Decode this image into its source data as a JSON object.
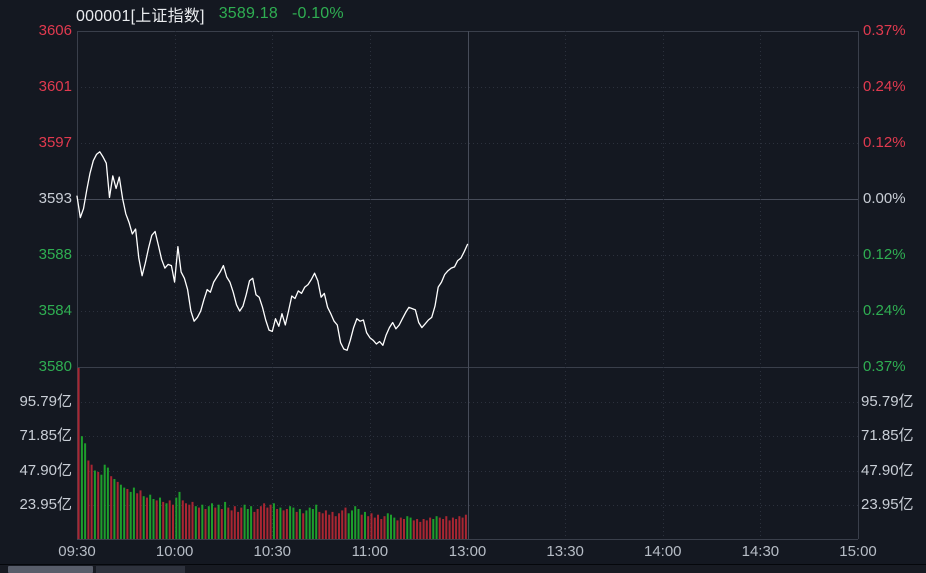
{
  "header": {
    "symbol": "000001[上证指数]",
    "price": "3589.18",
    "change_pct": "-0.10%"
  },
  "colors": {
    "up": "#e13a4f",
    "down": "#2fae52",
    "flat": "#c9ced6",
    "time": "#b7bdc6",
    "line": "#ffffff",
    "vol_up": "#a92632",
    "vol_down": "#1d9e2c",
    "grid_dotted": "#2c313d",
    "grid_solid": "#3a3f4b",
    "grid_mid": "#474c59"
  },
  "axes": {
    "price_ticks": [
      {
        "label": "3606",
        "tone": "up"
      },
      {
        "label": "3601",
        "tone": "up"
      },
      {
        "label": "3597",
        "tone": "up"
      },
      {
        "label": "3593",
        "tone": "flat"
      },
      {
        "label": "3588",
        "tone": "down"
      },
      {
        "label": "3584",
        "tone": "down"
      },
      {
        "label": "3580",
        "tone": "down"
      }
    ],
    "pct_ticks": [
      {
        "label": "0.37%",
        "tone": "up"
      },
      {
        "label": "0.24%",
        "tone": "up"
      },
      {
        "label": "0.12%",
        "tone": "up"
      },
      {
        "label": "0.00%",
        "tone": "flat"
      },
      {
        "label": "0.12%",
        "tone": "down"
      },
      {
        "label": "0.24%",
        "tone": "down"
      },
      {
        "label": "0.37%",
        "tone": "down"
      }
    ],
    "volume_ticks": [
      "95.79亿",
      "71.85亿",
      "47.90亿",
      "23.95亿"
    ]
  },
  "chart_data": {
    "type": "line",
    "subtype": "intraday-price-with-volume-bars",
    "title": "000001[上证指数]",
    "last_price": 3589.18,
    "change_pct": -0.1,
    "prev_close": 3592.77,
    "price_axis": {
      "min": 3579.48,
      "max": 3606.06,
      "ticks": [
        3606,
        3601,
        3597,
        3593,
        3588,
        3584,
        3580
      ]
    },
    "pct_axis": {
      "min": -0.37,
      "max": 0.37,
      "ticks": [
        0.37,
        0.24,
        0.12,
        0.0,
        -0.12,
        -0.24,
        -0.37
      ]
    },
    "volume_axis": {
      "unit": "亿",
      "max": 119.74,
      "ticks": [
        95.79,
        71.85,
        47.9,
        23.95
      ]
    },
    "x_axis": {
      "unit": "trading_minute",
      "total_minutes": 240,
      "session_break_minute": 120,
      "grid": "dotted",
      "labels": [
        {
          "label": "09:30",
          "minute": 0
        },
        {
          "label": "10:00",
          "minute": 30
        },
        {
          "label": "10:30",
          "minute": 60
        },
        {
          "label": "11:00",
          "minute": 90
        },
        {
          "label": "13:00",
          "minute": 120
        },
        {
          "label": "13:30",
          "minute": 150
        },
        {
          "label": "14:00",
          "minute": 180
        },
        {
          "label": "14:30",
          "minute": 210
        },
        {
          "label": "15:00",
          "minute": 240
        }
      ]
    },
    "price_points": [
      [
        0,
        3593.0
      ],
      [
        1,
        3591.3
      ],
      [
        2,
        3592.0
      ],
      [
        3,
        3593.5
      ],
      [
        4,
        3594.8
      ],
      [
        5,
        3595.8
      ],
      [
        6,
        3596.3
      ],
      [
        7,
        3596.5
      ],
      [
        8,
        3596.1
      ],
      [
        9,
        3595.6
      ],
      [
        10,
        3592.9
      ],
      [
        11,
        3594.6
      ],
      [
        12,
        3593.6
      ],
      [
        13,
        3594.5
      ],
      [
        14,
        3592.8
      ],
      [
        15,
        3591.6
      ],
      [
        16,
        3590.9
      ],
      [
        17,
        3590.0
      ],
      [
        18,
        3590.4
      ],
      [
        19,
        3588.1
      ],
      [
        20,
        3586.7
      ],
      [
        21,
        3587.7
      ],
      [
        22,
        3588.9
      ],
      [
        23,
        3589.9
      ],
      [
        24,
        3590.2
      ],
      [
        25,
        3589.1
      ],
      [
        26,
        3588.0
      ],
      [
        27,
        3587.3
      ],
      [
        28,
        3587.6
      ],
      [
        29,
        3587.5
      ],
      [
        30,
        3586.2
      ],
      [
        31,
        3589.0
      ],
      [
        32,
        3587.0
      ],
      [
        33,
        3586.5
      ],
      [
        34,
        3585.6
      ],
      [
        35,
        3583.9
      ],
      [
        36,
        3583.1
      ],
      [
        37,
        3583.4
      ],
      [
        38,
        3583.9
      ],
      [
        39,
        3584.8
      ],
      [
        40,
        3585.6
      ],
      [
        41,
        3585.4
      ],
      [
        42,
        3586.2
      ],
      [
        43,
        3586.6
      ],
      [
        44,
        3587.0
      ],
      [
        45,
        3587.5
      ],
      [
        46,
        3586.6
      ],
      [
        47,
        3586.2
      ],
      [
        48,
        3585.4
      ],
      [
        49,
        3584.4
      ],
      [
        50,
        3583.9
      ],
      [
        51,
        3584.3
      ],
      [
        52,
        3585.2
      ],
      [
        53,
        3586.3
      ],
      [
        54,
        3586.5
      ],
      [
        55,
        3585.2
      ],
      [
        56,
        3585.0
      ],
      [
        57,
        3584.2
      ],
      [
        58,
        3583.2
      ],
      [
        59,
        3582.4
      ],
      [
        60,
        3582.3
      ],
      [
        61,
        3583.3
      ],
      [
        62,
        3582.7
      ],
      [
        63,
        3583.7
      ],
      [
        64,
        3582.8
      ],
      [
        65,
        3583.9
      ],
      [
        66,
        3585.1
      ],
      [
        67,
        3584.9
      ],
      [
        68,
        3585.5
      ],
      [
        69,
        3585.3
      ],
      [
        70,
        3585.8
      ],
      [
        71,
        3586.0
      ],
      [
        72,
        3586.4
      ],
      [
        73,
        3586.9
      ],
      [
        74,
        3586.3
      ],
      [
        75,
        3585.0
      ],
      [
        76,
        3585.3
      ],
      [
        77,
        3584.2
      ],
      [
        78,
        3583.7
      ],
      [
        79,
        3583.1
      ],
      [
        80,
        3582.8
      ],
      [
        81,
        3581.4
      ],
      [
        82,
        3580.9
      ],
      [
        83,
        3580.8
      ],
      [
        84,
        3581.6
      ],
      [
        85,
        3582.6
      ],
      [
        86,
        3583.3
      ],
      [
        87,
        3583.1
      ],
      [
        88,
        3583.2
      ],
      [
        89,
        3582.2
      ],
      [
        90,
        3581.8
      ],
      [
        91,
        3581.6
      ],
      [
        92,
        3581.3
      ],
      [
        93,
        3581.5
      ],
      [
        94,
        3581.2
      ],
      [
        95,
        3582.0
      ],
      [
        96,
        3582.6
      ],
      [
        97,
        3583.0
      ],
      [
        98,
        3582.5
      ],
      [
        99,
        3582.8
      ],
      [
        100,
        3583.3
      ],
      [
        101,
        3583.8
      ],
      [
        102,
        3584.2
      ],
      [
        103,
        3584.1
      ],
      [
        104,
        3584.0
      ],
      [
        105,
        3583.0
      ],
      [
        106,
        3582.6
      ],
      [
        107,
        3582.9
      ],
      [
        108,
        3583.2
      ],
      [
        109,
        3583.4
      ],
      [
        110,
        3584.3
      ],
      [
        111,
        3585.8
      ],
      [
        112,
        3586.2
      ],
      [
        113,
        3586.8
      ],
      [
        114,
        3587.1
      ],
      [
        115,
        3587.3
      ],
      [
        116,
        3587.4
      ],
      [
        117,
        3587.9
      ],
      [
        118,
        3588.1
      ],
      [
        119,
        3588.6
      ],
      [
        120,
        3589.18
      ]
    ],
    "volume_bars": [
      [
        0,
        125,
        "r"
      ],
      [
        1,
        72,
        "g"
      ],
      [
        2,
        67,
        "g"
      ],
      [
        3,
        55,
        "r"
      ],
      [
        4,
        52,
        "r"
      ],
      [
        5,
        48,
        "g"
      ],
      [
        6,
        47,
        "r"
      ],
      [
        7,
        45,
        "g"
      ],
      [
        8,
        52,
        "g"
      ],
      [
        9,
        50,
        "g"
      ],
      [
        10,
        44,
        "r"
      ],
      [
        11,
        42,
        "g"
      ],
      [
        12,
        40,
        "r"
      ],
      [
        13,
        38,
        "g"
      ],
      [
        14,
        36,
        "g"
      ],
      [
        15,
        35,
        "r"
      ],
      [
        16,
        33,
        "g"
      ],
      [
        17,
        36,
        "g"
      ],
      [
        18,
        32,
        "r"
      ],
      [
        19,
        34,
        "r"
      ],
      [
        20,
        30,
        "g"
      ],
      [
        21,
        29,
        "r"
      ],
      [
        22,
        31,
        "g"
      ],
      [
        23,
        28,
        "g"
      ],
      [
        24,
        27,
        "r"
      ],
      [
        25,
        29,
        "g"
      ],
      [
        26,
        26,
        "r"
      ],
      [
        27,
        25,
        "g"
      ],
      [
        28,
        27,
        "r"
      ],
      [
        29,
        24,
        "r"
      ],
      [
        30,
        29,
        "g"
      ],
      [
        31,
        33,
        "g"
      ],
      [
        32,
        27,
        "r"
      ],
      [
        33,
        25,
        "r"
      ],
      [
        34,
        24,
        "r"
      ],
      [
        35,
        26,
        "r"
      ],
      [
        36,
        23,
        "g"
      ],
      [
        37,
        22,
        "r"
      ],
      [
        38,
        24,
        "g"
      ],
      [
        39,
        21,
        "r"
      ],
      [
        40,
        23,
        "g"
      ],
      [
        41,
        25,
        "g"
      ],
      [
        42,
        22,
        "r"
      ],
      [
        43,
        24,
        "g"
      ],
      [
        44,
        21,
        "r"
      ],
      [
        45,
        26,
        "g"
      ],
      [
        46,
        22,
        "r"
      ],
      [
        47,
        20,
        "r"
      ],
      [
        48,
        23,
        "r"
      ],
      [
        49,
        19,
        "r"
      ],
      [
        50,
        22,
        "r"
      ],
      [
        51,
        24,
        "g"
      ],
      [
        52,
        21,
        "g"
      ],
      [
        53,
        23,
        "g"
      ],
      [
        54,
        19,
        "r"
      ],
      [
        55,
        21,
        "r"
      ],
      [
        56,
        23,
        "r"
      ],
      [
        57,
        25,
        "r"
      ],
      [
        58,
        22,
        "r"
      ],
      [
        59,
        24,
        "r"
      ],
      [
        60,
        25,
        "g"
      ],
      [
        61,
        21,
        "r"
      ],
      [
        62,
        22,
        "g"
      ],
      [
        63,
        20,
        "r"
      ],
      [
        64,
        21,
        "r"
      ],
      [
        65,
        23,
        "g"
      ],
      [
        66,
        22,
        "g"
      ],
      [
        67,
        19,
        "r"
      ],
      [
        68,
        21,
        "g"
      ],
      [
        69,
        18,
        "r"
      ],
      [
        70,
        20,
        "g"
      ],
      [
        71,
        22,
        "g"
      ],
      [
        72,
        21,
        "g"
      ],
      [
        73,
        24,
        "g"
      ],
      [
        74,
        19,
        "r"
      ],
      [
        75,
        18,
        "r"
      ],
      [
        76,
        20,
        "r"
      ],
      [
        77,
        17,
        "r"
      ],
      [
        78,
        19,
        "r"
      ],
      [
        79,
        16,
        "r"
      ],
      [
        80,
        18,
        "r"
      ],
      [
        81,
        20,
        "r"
      ],
      [
        82,
        22,
        "r"
      ],
      [
        83,
        18,
        "g"
      ],
      [
        84,
        20,
        "g"
      ],
      [
        85,
        23,
        "g"
      ],
      [
        86,
        21,
        "g"
      ],
      [
        87,
        17,
        "r"
      ],
      [
        88,
        19,
        "g"
      ],
      [
        89,
        16,
        "r"
      ],
      [
        90,
        18,
        "r"
      ],
      [
        91,
        15,
        "r"
      ],
      [
        92,
        17,
        "r"
      ],
      [
        93,
        14,
        "r"
      ],
      [
        94,
        16,
        "r"
      ],
      [
        95,
        18,
        "g"
      ],
      [
        96,
        17,
        "g"
      ],
      [
        97,
        15,
        "g"
      ],
      [
        98,
        13,
        "r"
      ],
      [
        99,
        15,
        "r"
      ],
      [
        100,
        14,
        "r"
      ],
      [
        101,
        16,
        "g"
      ],
      [
        102,
        15,
        "g"
      ],
      [
        103,
        13,
        "r"
      ],
      [
        104,
        14,
        "r"
      ],
      [
        105,
        12,
        "r"
      ],
      [
        106,
        14,
        "r"
      ],
      [
        107,
        13,
        "r"
      ],
      [
        108,
        15,
        "r"
      ],
      [
        109,
        14,
        "g"
      ],
      [
        110,
        16,
        "g"
      ],
      [
        111,
        15,
        "r"
      ],
      [
        112,
        14,
        "r"
      ],
      [
        113,
        16,
        "r"
      ],
      [
        114,
        13,
        "r"
      ],
      [
        115,
        15,
        "r"
      ],
      [
        116,
        14,
        "r"
      ],
      [
        117,
        16,
        "r"
      ],
      [
        118,
        15,
        "r"
      ],
      [
        119,
        17,
        "r"
      ]
    ]
  }
}
